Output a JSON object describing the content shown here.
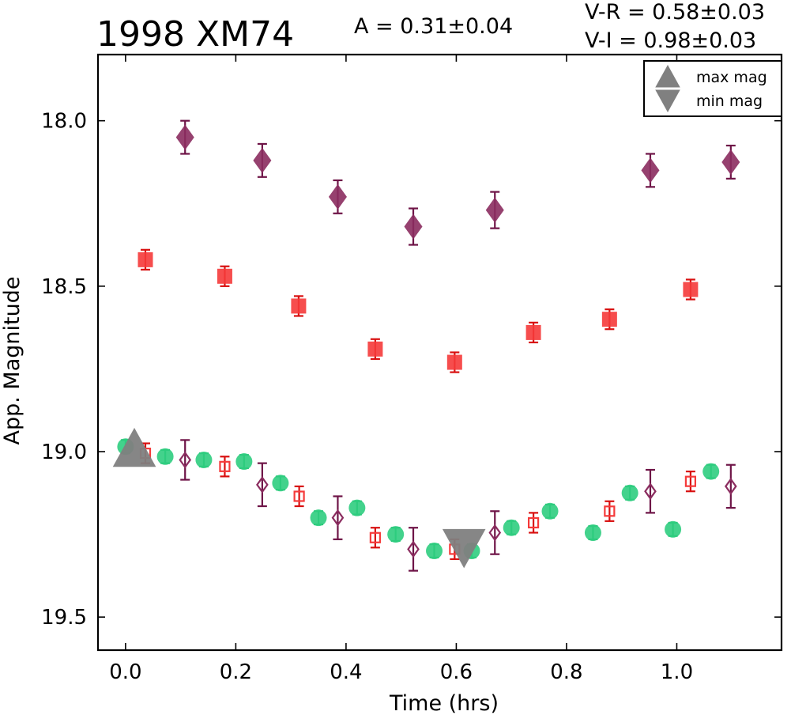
{
  "chart_data": {
    "type": "scatter",
    "title": "1998 XM74",
    "annotations": {
      "amplitude": "A  = 0.31±0.04",
      "v_r": "V-R = 0.58±0.03",
      "v_i": "V-I  = 0.98±0.03"
    },
    "xlabel": "Time (hrs)",
    "ylabel": "App. Magnitude",
    "xlim": [
      -0.05,
      1.19
    ],
    "ylim": [
      19.6,
      17.8
    ],
    "y_inverted": true,
    "x_ticks": [
      "0.0",
      "0.2",
      "0.4",
      "0.6",
      "0.8",
      "1.0"
    ],
    "x_tick_values": [
      0.0,
      0.2,
      0.4,
      0.6,
      0.8,
      1.0
    ],
    "y_ticks": [
      "18.0",
      "18.5",
      "19.0",
      "19.5"
    ],
    "y_tick_values": [
      18.0,
      18.5,
      19.0,
      19.5
    ],
    "grid": false,
    "legend": {
      "placement": "top-right",
      "entries": [
        {
          "label": "max mag",
          "marker": "triangle-up",
          "color": "#808080"
        },
        {
          "label": "min mag",
          "marker": "triangle-down",
          "color": "#808080"
        }
      ]
    },
    "series": [
      {
        "marker": "diamond",
        "filled": true,
        "color": "#8b2c5f",
        "errcolor": "#6e1447",
        "points": [
          {
            "x": 0.108,
            "y": 18.05,
            "err": 0.05
          },
          {
            "x": 0.248,
            "y": 18.12,
            "err": 0.05
          },
          {
            "x": 0.385,
            "y": 18.23,
            "err": 0.05
          },
          {
            "x": 0.522,
            "y": 18.32,
            "err": 0.055
          },
          {
            "x": 0.67,
            "y": 18.27,
            "err": 0.055
          },
          {
            "x": 0.952,
            "y": 18.15,
            "err": 0.05
          },
          {
            "x": 1.098,
            "y": 18.125,
            "err": 0.05
          }
        ]
      },
      {
        "marker": "square",
        "filled": true,
        "color": "#f53a3a",
        "errcolor": "#d81010",
        "points": [
          {
            "x": 0.036,
            "y": 18.42,
            "err": 0.03
          },
          {
            "x": 0.18,
            "y": 18.47,
            "err": 0.03
          },
          {
            "x": 0.314,
            "y": 18.56,
            "err": 0.03
          },
          {
            "x": 0.453,
            "y": 18.69,
            "err": 0.03
          },
          {
            "x": 0.597,
            "y": 18.73,
            "err": 0.03
          },
          {
            "x": 0.74,
            "y": 18.64,
            "err": 0.03
          },
          {
            "x": 0.878,
            "y": 18.6,
            "err": 0.03
          },
          {
            "x": 1.025,
            "y": 18.51,
            "err": 0.03
          }
        ]
      },
      {
        "marker": "circle",
        "filled": true,
        "color": "#2fcd80",
        "errcolor": "#1fbf70",
        "points": [
          {
            "x": 0.0,
            "y": 18.985,
            "err": 0.02
          },
          {
            "x": 0.072,
            "y": 19.015,
            "err": 0.02
          },
          {
            "x": 0.142,
            "y": 19.025,
            "err": 0.02
          },
          {
            "x": 0.215,
            "y": 19.03,
            "err": 0.02
          },
          {
            "x": 0.281,
            "y": 19.095,
            "err": 0.02
          },
          {
            "x": 0.35,
            "y": 19.2,
            "err": 0.02
          },
          {
            "x": 0.42,
            "y": 19.17,
            "err": 0.02
          },
          {
            "x": 0.49,
            "y": 19.25,
            "err": 0.02
          },
          {
            "x": 0.56,
            "y": 19.3,
            "err": 0.02
          },
          {
            "x": 0.628,
            "y": 19.3,
            "err": 0.02
          },
          {
            "x": 0.7,
            "y": 19.23,
            "err": 0.02
          },
          {
            "x": 0.77,
            "y": 19.18,
            "err": 0.02
          },
          {
            "x": 0.848,
            "y": 19.245,
            "err": 0.02
          },
          {
            "x": 0.915,
            "y": 19.125,
            "err": 0.02
          },
          {
            "x": 0.993,
            "y": 19.235,
            "err": 0.02
          },
          {
            "x": 1.062,
            "y": 19.06,
            "err": 0.02
          }
        ]
      },
      {
        "marker": "square",
        "filled": false,
        "color": "#f53a3a",
        "errcolor": "#d81010",
        "points": [
          {
            "x": 0.036,
            "y": 19.005,
            "err": 0.03
          },
          {
            "x": 0.18,
            "y": 19.045,
            "err": 0.03
          },
          {
            "x": 0.315,
            "y": 19.135,
            "err": 0.03
          },
          {
            "x": 0.453,
            "y": 19.26,
            "err": 0.03
          },
          {
            "x": 0.597,
            "y": 19.295,
            "err": 0.03
          },
          {
            "x": 0.74,
            "y": 19.215,
            "err": 0.03
          },
          {
            "x": 0.878,
            "y": 19.18,
            "err": 0.03
          },
          {
            "x": 1.025,
            "y": 19.09,
            "err": 0.03
          }
        ]
      },
      {
        "marker": "diamond",
        "filled": false,
        "color": "#8b2c5f",
        "errcolor": "#6e1447",
        "points": [
          {
            "x": 0.108,
            "y": 19.025,
            "err": 0.06
          },
          {
            "x": 0.248,
            "y": 19.1,
            "err": 0.065
          },
          {
            "x": 0.385,
            "y": 19.2,
            "err": 0.065
          },
          {
            "x": 0.522,
            "y": 19.295,
            "err": 0.065
          },
          {
            "x": 0.67,
            "y": 19.245,
            "err": 0.065
          },
          {
            "x": 0.952,
            "y": 19.12,
            "err": 0.065
          },
          {
            "x": 1.098,
            "y": 19.105,
            "err": 0.065
          }
        ]
      },
      {
        "name": "max mag",
        "marker": "triangle-up",
        "filled": true,
        "color": "#808080",
        "points": [
          {
            "x": 0.016,
            "y": 18.99
          }
        ]
      },
      {
        "name": "min mag",
        "marker": "triangle-down",
        "filled": true,
        "color": "#808080",
        "points": [
          {
            "x": 0.614,
            "y": 19.29
          }
        ]
      }
    ]
  }
}
